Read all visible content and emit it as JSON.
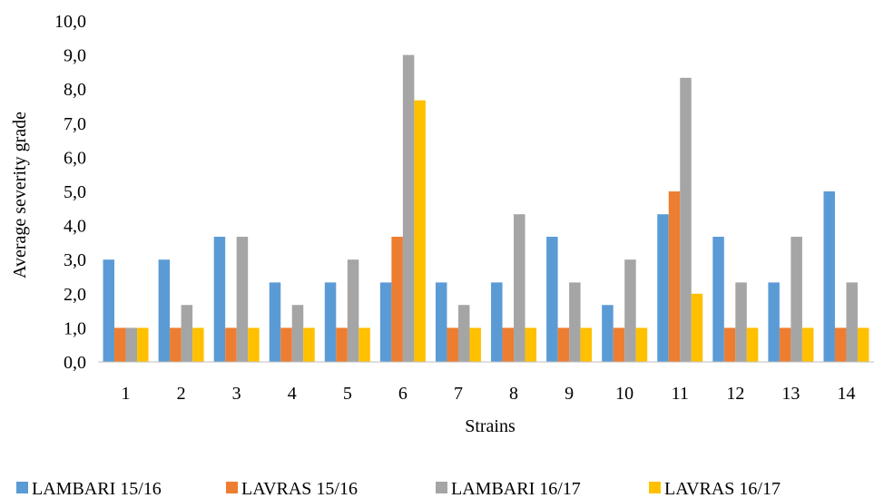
{
  "chart_data": {
    "type": "bar",
    "title": "",
    "xlabel": "Strains",
    "ylabel": "Average severity grade",
    "ylim": [
      0,
      10
    ],
    "yticks": [
      "0,0",
      "1,0",
      "2,0",
      "3,0",
      "4,0",
      "5,0",
      "6,0",
      "7,0",
      "8,0",
      "9,0",
      "10,0"
    ],
    "categories": [
      "1",
      "2",
      "3",
      "4",
      "5",
      "6",
      "7",
      "8",
      "9",
      "10",
      "11",
      "12",
      "13",
      "14"
    ],
    "grid": false,
    "legend_position": "bottom",
    "series": [
      {
        "name": "LAMBARI 15/16",
        "color": "#5b9bd5",
        "values": [
          3.0,
          3.0,
          3.67,
          2.33,
          2.33,
          2.33,
          2.33,
          2.33,
          3.67,
          1.67,
          4.33,
          3.67,
          2.33,
          5.0
        ]
      },
      {
        "name": "LAVRAS 15/16",
        "color": "#ed7d31",
        "values": [
          1.0,
          1.0,
          1.0,
          1.0,
          1.0,
          3.67,
          1.0,
          1.0,
          1.0,
          1.0,
          5.0,
          1.0,
          1.0,
          1.0
        ]
      },
      {
        "name": "LAMBARI 16/17",
        "color": "#a5a5a5",
        "values": [
          1.0,
          1.67,
          3.67,
          1.67,
          3.0,
          9.0,
          1.67,
          4.33,
          2.33,
          3.0,
          8.33,
          2.33,
          3.67,
          2.33
        ]
      },
      {
        "name": "LAVRAS 16/17",
        "color": "#ffc000",
        "values": [
          1.0,
          1.0,
          1.0,
          1.0,
          1.0,
          7.67,
          1.0,
          1.0,
          1.0,
          1.0,
          2.0,
          1.0,
          1.0,
          1.0
        ]
      }
    ]
  }
}
